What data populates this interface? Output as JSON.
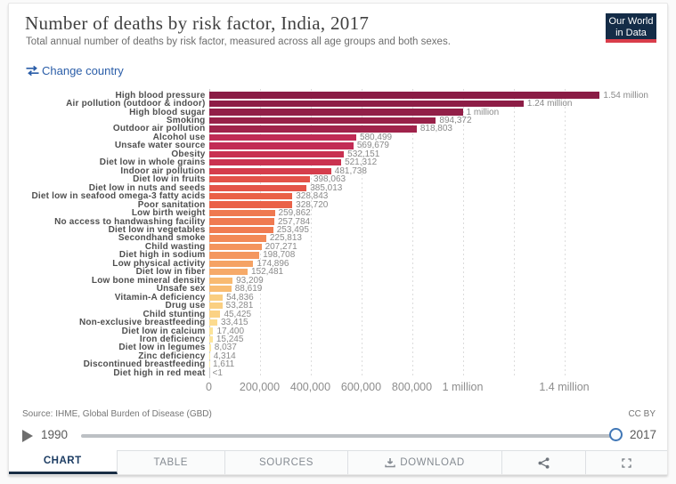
{
  "header": {
    "title": "Number of deaths by risk factor, India, 2017",
    "subtitle": "Total annual number of deaths by risk factor, measured across all age groups and both sexes.",
    "change_country_label": "Change country",
    "logo_line1": "Our World",
    "logo_line2": "in Data"
  },
  "chart_data": {
    "type": "bar",
    "orientation": "horizontal",
    "title": "Number of deaths by risk factor, India, 2017",
    "xlabel": "",
    "ylabel": "",
    "xlim": [
      0,
      1540000
    ],
    "grid": "vertical-dashed",
    "categories": [
      "High blood pressure",
      "Air pollution (outdoor & indoor)",
      "High blood sugar",
      "Smoking",
      "Outdoor air pollution",
      "Alcohol use",
      "Unsafe water source",
      "Obesity",
      "Diet low in whole grains",
      "Indoor air pollution",
      "Diet low in fruits",
      "Diet low in nuts and seeds",
      "Diet low in seafood omega-3 fatty acids",
      "Poor sanitation",
      "Low birth weight",
      "No access to handwashing facility",
      "Diet low in vegetables",
      "Secondhand smoke",
      "Child wasting",
      "Diet high in sodium",
      "Low physical activity",
      "Diet low in fiber",
      "Low bone mineral density",
      "Unsafe sex",
      "Vitamin-A deficiency",
      "Drug use",
      "Child stunting",
      "Non-exclusive breastfeeding",
      "Diet low in calcium",
      "Iron deficiency",
      "Diet low in legumes",
      "Zinc deficiency",
      "Discontinued breastfeeding",
      "Diet high in red meat"
    ],
    "values": [
      1540000,
      1240000,
      1000000,
      894372,
      818803,
      580499,
      569679,
      532151,
      521312,
      481738,
      398063,
      385013,
      328843,
      328720,
      259862,
      257784,
      253495,
      225813,
      207271,
      198708,
      174896,
      152481,
      93209,
      88619,
      54836,
      53281,
      45425,
      33415,
      17400,
      15245,
      8037,
      4314,
      1611,
      0.4
    ],
    "value_labels": [
      "1.54 million",
      "1.24 million",
      "1 million",
      "894,372",
      "818,803",
      "580,499",
      "569,679",
      "532,151",
      "521,312",
      "481,738",
      "398,063",
      "385,013",
      "328,843",
      "328,720",
      "259,862",
      "257,784",
      "253,495",
      "225,813",
      "207,271",
      "198,708",
      "174,896",
      "152,481",
      "93,209",
      "88,619",
      "54,836",
      "53,281",
      "45,425",
      "33,415",
      "17,400",
      "15,245",
      "8,037",
      "4,314",
      "1,611",
      "<1"
    ],
    "bar_colors": [
      "#8a1c45",
      "#8d1d46",
      "#921f48",
      "#982149",
      "#a0234b",
      "#c02b55",
      "#c22c55",
      "#c83151",
      "#ca3250",
      "#d53d4c",
      "#e35249",
      "#e45449",
      "#ea6147",
      "#ea6147",
      "#ef7950",
      "#ef7a51",
      "#f07c52",
      "#f28957",
      "#f4945d",
      "#f4975f",
      "#f5a264",
      "#f6aa69",
      "#f8ba71",
      "#f8bc72",
      "#face81",
      "#facf82",
      "#fbd285",
      "#fcdb8f",
      "#fce49a",
      "#fde59c",
      "#fde9a3",
      "#fdeca9",
      "#fdefb1",
      "#fdefb1"
    ],
    "x_ticks": [
      {
        "value": 0,
        "label": "0"
      },
      {
        "value": 200000,
        "label": "200,000"
      },
      {
        "value": 400000,
        "label": "400,000"
      },
      {
        "value": 600000,
        "label": "600,000"
      },
      {
        "value": 800000,
        "label": "800,000"
      },
      {
        "value": 1000000,
        "label": "1 million"
      },
      {
        "value": 1200000,
        "label": ""
      },
      {
        "value": 1400000,
        "label": "1.4 million"
      }
    ]
  },
  "footer": {
    "source": "Source: IHME, Global Burden of Disease (GBD)",
    "license": "CC BY"
  },
  "icons": {
    "change_country": "swap-arrows-icon",
    "download_tab": "download-icon",
    "share_button": "share-icon",
    "fullscreen_button": "fullscreen-icon",
    "timeline_play": "play-icon"
  },
  "timeline": {
    "start_year": "1990",
    "end_year": "2017"
  },
  "tabs": [
    {
      "label": "CHART",
      "active": true
    },
    {
      "label": "TABLE",
      "active": false
    },
    {
      "label": "SOURCES",
      "active": false
    },
    {
      "label": "DOWNLOAD",
      "active": false,
      "icon": "download"
    }
  ],
  "colors": {
    "logo_bg": "#1d3d63",
    "logo_red": "#d93d4a",
    "link_blue": "#2a5da8",
    "active_tab": "#1d3d63"
  }
}
